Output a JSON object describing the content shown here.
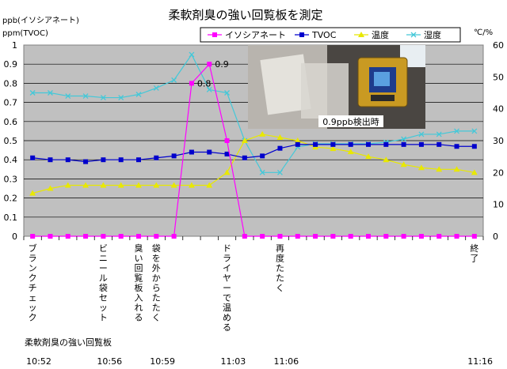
{
  "chart_data": {
    "type": "line",
    "title": "柔軟剤臭の強い回覧板を測定",
    "left_axis_label_1": "ppb(イソシアネート)",
    "left_axis_label_2": "ppm(TVOC)",
    "right_axis_label": "℃/%",
    "ylim_left": [
      0,
      1
    ],
    "ylim_right": [
      0,
      60
    ],
    "left_ticks": [
      "0",
      "0.1",
      "0.2",
      "0.3",
      "0.4",
      "0.5",
      "0.6",
      "0.7",
      "0.8",
      "0.9",
      "1"
    ],
    "right_ticks": [
      "0",
      "10",
      "20",
      "30",
      "40",
      "50",
      "60"
    ],
    "grid": true,
    "legend_position": "top",
    "series": [
      {
        "name": "イソシアネート",
        "axis": "left",
        "color": "#ff00ff",
        "marker": "square",
        "values": [
          0,
          0,
          0,
          0,
          0,
          0,
          0,
          0,
          0,
          0.8,
          0.9,
          0.5,
          0,
          0,
          0,
          0,
          0,
          0,
          0,
          0,
          0,
          0,
          0,
          0,
          0,
          0
        ]
      },
      {
        "name": "TVOC",
        "axis": "left",
        "color": "#0000cc",
        "marker": "square",
        "values": [
          0.41,
          0.4,
          0.4,
          0.39,
          0.4,
          0.4,
          0.4,
          0.41,
          0.42,
          0.44,
          0.44,
          0.43,
          0.41,
          0.42,
          0.46,
          0.48,
          0.48,
          0.48,
          0.48,
          0.48,
          0.48,
          0.48,
          0.48,
          0.48,
          0.47,
          0.47
        ]
      },
      {
        "name": "温度",
        "axis": "right",
        "color": "#e8e800",
        "marker": "triangle",
        "values": [
          13.5,
          15,
          16,
          16,
          16,
          16,
          16,
          16,
          16,
          16,
          16,
          20,
          30,
          32,
          31,
          30,
          28,
          27.5,
          26.5,
          25,
          24,
          22.5,
          21.5,
          21,
          21,
          20
        ]
      },
      {
        "name": "湿度",
        "axis": "right",
        "color": "#44c8d8",
        "marker": "x",
        "values": [
          45,
          45,
          44,
          44,
          43.5,
          43.5,
          44.5,
          46.5,
          49,
          57,
          46,
          45,
          30,
          20,
          20,
          28,
          29,
          29,
          29,
          29,
          29.5,
          30.5,
          32,
          32,
          33,
          33
        ]
      }
    ],
    "point_labels": [
      {
        "series": 0,
        "index": 9,
        "text": "0.8"
      },
      {
        "series": 0,
        "index": 10,
        "text": "0.9"
      }
    ],
    "event_labels": [
      {
        "index": 0,
        "text": "ブランクチェック"
      },
      {
        "index": 4,
        "text": "ビニール袋セット"
      },
      {
        "index": 6,
        "text": "臭い回覧板入れる"
      },
      {
        "index": 7,
        "text": "袋を外からたたく"
      },
      {
        "index": 11,
        "text": "ドライヤーで温める"
      },
      {
        "index": 14,
        "text": "再度たたく"
      },
      {
        "index": 25,
        "text": "終了"
      }
    ],
    "subject_label": "柔軟剤臭の強い回覧板",
    "time_labels": [
      {
        "index": 0,
        "text": "10:52"
      },
      {
        "index": 4,
        "text": "10:56"
      },
      {
        "index": 7,
        "text": "10:59"
      },
      {
        "index": 11,
        "text": "11:03"
      },
      {
        "index": 14,
        "text": "11:06"
      },
      {
        "index": 25,
        "text": "11:16"
      }
    ],
    "photo_caption": "0.9ppb検出時"
  }
}
